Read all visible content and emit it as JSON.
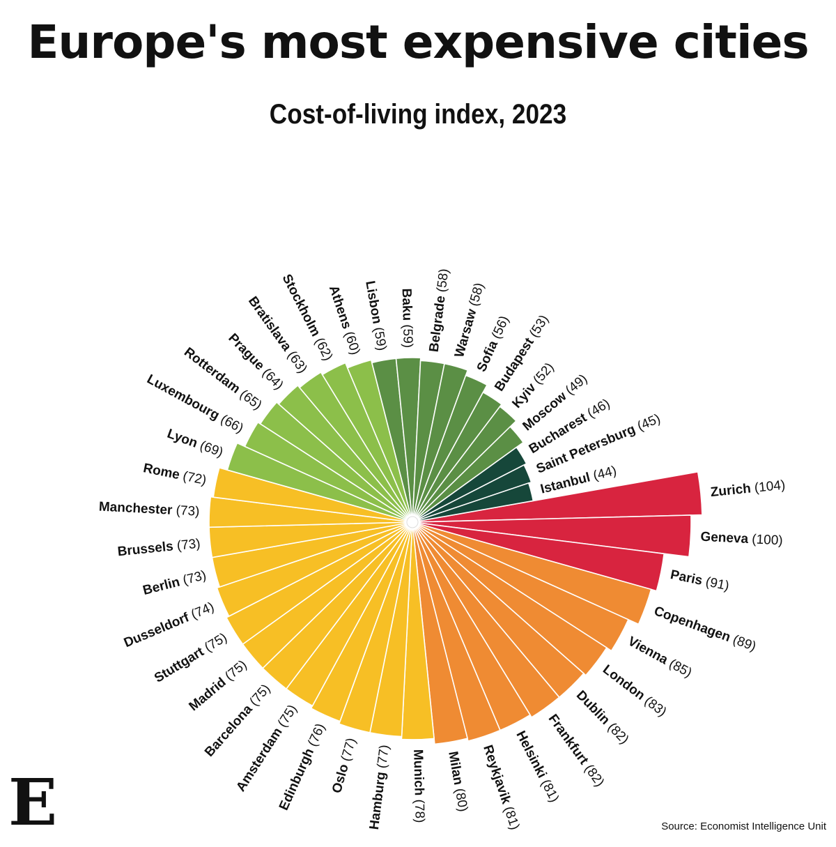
{
  "header": {
    "title": "Europe's most expensive cities",
    "subtitle": "Cost-of-living index, 2023"
  },
  "footer": {
    "source": "Source: Economist Intelligence Unit",
    "logo_letter": "E"
  },
  "chart_data": {
    "type": "bar",
    "layout": "radial",
    "title": "Europe's most expensive cities",
    "subtitle": "Cost-of-living index, 2023",
    "categories": [
      "Zurich",
      "Geneva",
      "Paris",
      "Copenhagen",
      "Vienna",
      "London",
      "Dublin",
      "Frankfurt",
      "Helsinki",
      "Reykjavik",
      "Milan",
      "Munich",
      "Hamburg",
      "Oslo",
      "Edinburgh",
      "Amsterdam",
      "Barcelona",
      "Madrid",
      "Stuttgart",
      "Dusseldorf",
      "Berlin",
      "Brussels",
      "Manchester",
      "Rome",
      "Lyon",
      "Luxembourg",
      "Rotterdam",
      "Prague",
      "Bratislava",
      "Stockholm",
      "Athens",
      "Lisbon",
      "Baku",
      "Belgrade",
      "Warsaw",
      "Sofia",
      "Budapest",
      "Kyiv",
      "Moscow",
      "Bucharest",
      "Saint Petersburg",
      "Istanbul"
    ],
    "values": [
      104,
      100,
      91,
      89,
      85,
      83,
      82,
      82,
      81,
      81,
      80,
      78,
      77,
      77,
      76,
      75,
      75,
      75,
      75,
      74,
      73,
      73,
      73,
      72,
      69,
      66,
      65,
      64,
      63,
      62,
      60,
      59,
      59,
      58,
      58,
      56,
      53,
      52,
      49,
      46,
      45,
      44
    ],
    "colors": {
      "red": "#d8243f",
      "orange": "#ef8b33",
      "yellow": "#f7bf25",
      "lightgreen": "#8cbf4a",
      "green": "#5b8f45",
      "darkgreen": "#16473a"
    },
    "color_groups": [
      "red",
      "red",
      "red",
      "orange",
      "orange",
      "orange",
      "orange",
      "orange",
      "orange",
      "orange",
      "orange",
      "yellow",
      "yellow",
      "yellow",
      "yellow",
      "yellow",
      "yellow",
      "yellow",
      "yellow",
      "yellow",
      "yellow",
      "yellow",
      "yellow",
      "yellow",
      "lightgreen",
      "lightgreen",
      "lightgreen",
      "lightgreen",
      "lightgreen",
      "lightgreen",
      "lightgreen",
      "green",
      "green",
      "green",
      "green",
      "green",
      "green",
      "green",
      "green",
      "darkgreen",
      "darkgreen",
      "darkgreen"
    ]
  }
}
